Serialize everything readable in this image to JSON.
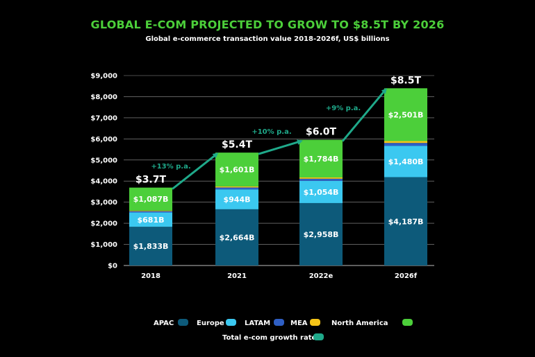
{
  "chart_data": {
    "type": "bar",
    "stacked": true,
    "title": "GLOBAL E-COM PROJECTED TO GROW TO $8.5T BY 2026",
    "subtitle": "Global e-commerce transaction value 2018-2026f, US$ billions",
    "categories": [
      "2018",
      "2021",
      "2022e",
      "2026f"
    ],
    "ylim": [
      0,
      9000
    ],
    "yticks": [
      "$0",
      "$1,000",
      "$2,000",
      "$3,000",
      "$4,000",
      "$5,000",
      "$6,000",
      "$7,000",
      "$8,000",
      "$9,000"
    ],
    "grid": true,
    "legend_position": "bottom",
    "series": [
      {
        "name": "APAC",
        "color": "#0d5a7a",
        "values": [
          1833,
          2664,
          2958,
          4187
        ],
        "labels": [
          "$1,833B",
          "$2,664B",
          "$2,958B",
          "$4,187B"
        ]
      },
      {
        "name": "Europe",
        "color": "#3bc8f0",
        "values": [
          681,
          944,
          1054,
          1480
        ],
        "labels": [
          "$681B",
          "$944B",
          "$1,054B",
          "$1,480B"
        ]
      },
      {
        "name": "LATAM",
        "color": "#2f5fc4",
        "values": [
          60,
          90,
          100,
          140
        ],
        "labels": [
          "",
          "",
          "",
          ""
        ]
      },
      {
        "name": "MEA",
        "color": "#f5c518",
        "values": [
          30,
          50,
          60,
          90
        ],
        "labels": [
          "",
          "",
          "",
          ""
        ]
      },
      {
        "name": "North America",
        "color": "#4ccf3a",
        "values": [
          1087,
          1601,
          1784,
          2501
        ],
        "labels": [
          "$1,087B",
          "$1,601B",
          "$1,784B",
          "$2,501B"
        ]
      }
    ],
    "totals": [
      {
        "value": 3700,
        "label": "$3.7T"
      },
      {
        "value": 5400,
        "label": "$5.4T"
      },
      {
        "value": 6000,
        "label": "$6.0T"
      },
      {
        "value": 8500,
        "label": "$8.5T"
      }
    ],
    "growth_rates": [
      "+13% p.a.",
      "+10% p.a.",
      "+9% p.a."
    ],
    "growth_series": {
      "name": "Total e-com growth rate",
      "color": "#1fa98a"
    }
  }
}
